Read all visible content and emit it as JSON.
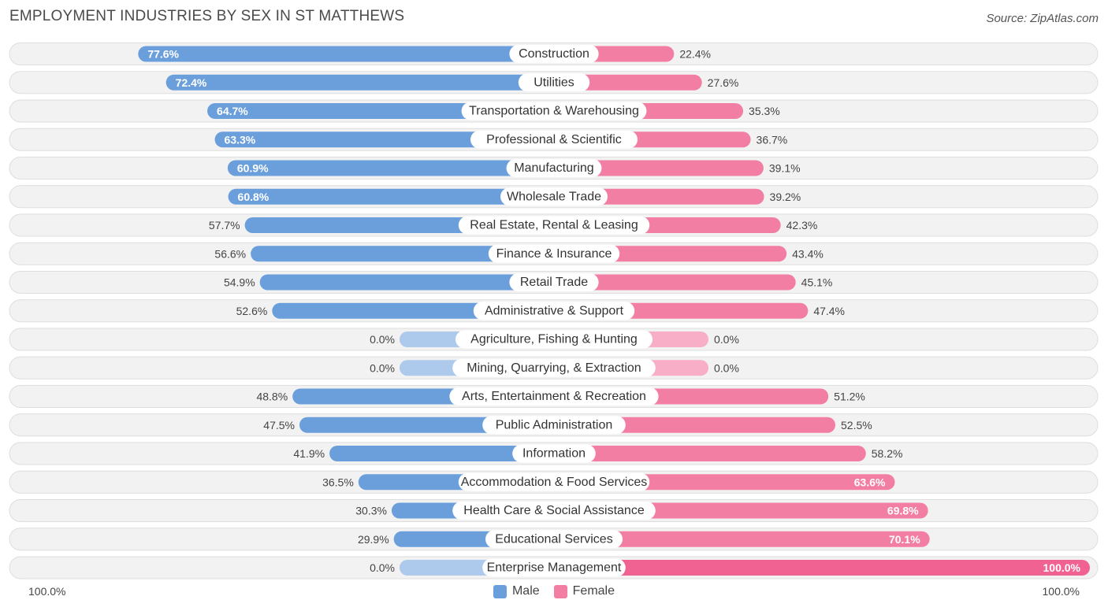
{
  "title": "EMPLOYMENT INDUSTRIES BY SEX IN ST MATTHEWS",
  "source": "Source: ZipAtlas.com",
  "axis": {
    "left_label": "100.0%",
    "right_label": "100.0%"
  },
  "legend": {
    "male": "Male",
    "female": "Female"
  },
  "colors": {
    "male": "#6a9fdc",
    "male_light": "#adc9ec",
    "female": "#f27fa3",
    "female_light": "#f7aec6",
    "female_strong": "#f06292",
    "row_bg": "#f2f2f2",
    "row_border": "#dedede"
  },
  "chart_data": {
    "type": "bar",
    "orientation": "horizontal-diverging",
    "title": "EMPLOYMENT INDUSTRIES BY SEX IN ST MATTHEWS",
    "xlim": [
      -100,
      100
    ],
    "categories": [
      "Construction",
      "Utilities",
      "Transportation & Warehousing",
      "Professional & Scientific",
      "Manufacturing",
      "Wholesale Trade",
      "Real Estate, Rental & Leasing",
      "Finance & Insurance",
      "Retail Trade",
      "Administrative & Support",
      "Agriculture, Fishing & Hunting",
      "Mining, Quarrying, & Extraction",
      "Arts, Entertainment & Recreation",
      "Public Administration",
      "Information",
      "Accommodation & Food Services",
      "Health Care & Social Assistance",
      "Educational Services",
      "Enterprise Management"
    ],
    "series": [
      {
        "name": "Male",
        "values": [
          77.6,
          72.4,
          64.7,
          63.3,
          60.9,
          60.8,
          57.7,
          56.6,
          54.9,
          52.6,
          0.0,
          0.0,
          48.8,
          47.5,
          41.9,
          36.5,
          30.3,
          29.9,
          0.0
        ],
        "labels": [
          "77.6%",
          "72.4%",
          "64.7%",
          "63.3%",
          "60.9%",
          "60.8%",
          "57.7%",
          "56.6%",
          "54.9%",
          "52.6%",
          "0.0%",
          "0.0%",
          "48.8%",
          "47.5%",
          "41.9%",
          "36.5%",
          "30.3%",
          "29.9%",
          "0.0%"
        ]
      },
      {
        "name": "Female",
        "values": [
          22.4,
          27.6,
          35.3,
          36.7,
          39.1,
          39.2,
          42.3,
          43.4,
          45.1,
          47.4,
          0.0,
          0.0,
          51.2,
          52.5,
          58.2,
          63.6,
          69.8,
          70.1,
          100.0
        ],
        "labels": [
          "22.4%",
          "27.6%",
          "35.3%",
          "36.7%",
          "39.1%",
          "39.2%",
          "42.3%",
          "43.4%",
          "45.1%",
          "47.4%",
          "0.0%",
          "0.0%",
          "51.2%",
          "52.5%",
          "58.2%",
          "63.6%",
          "69.8%",
          "70.1%",
          "100.0%"
        ]
      }
    ]
  }
}
